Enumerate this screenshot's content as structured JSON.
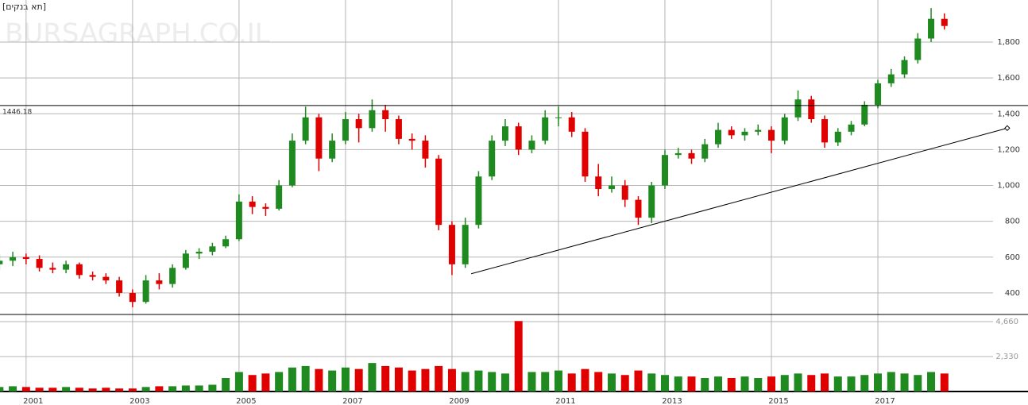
{
  "chart_data": [
    {
      "type": "candlestick",
      "title": "[תא בנקים]",
      "watermark": "BURSAGRAPH.CO.IL",
      "x": [
        2000.5,
        2000.75,
        2001,
        2001.25,
        2001.5,
        2001.75,
        2002,
        2002.25,
        2002.5,
        2002.75,
        2003,
        2003.25,
        2003.5,
        2003.75,
        2004,
        2004.25,
        2004.5,
        2004.75,
        2005,
        2005.25,
        2005.5,
        2005.75,
        2006,
        2006.25,
        2006.5,
        2006.75,
        2007,
        2007.25,
        2007.5,
        2007.75,
        2008,
        2008.25,
        2008.5,
        2008.75,
        2009,
        2009.25,
        2009.5,
        2009.75,
        2010,
        2010.25,
        2010.5,
        2010.75,
        2011,
        2011.25,
        2011.5,
        2011.75,
        2012,
        2012.25,
        2012.5,
        2012.75,
        2013,
        2013.25,
        2013.5,
        2013.75,
        2014,
        2014.25,
        2014.5,
        2014.75,
        2015,
        2015.25,
        2015.5,
        2015.75,
        2016,
        2016.25,
        2016.5,
        2016.75,
        2017,
        2017.25,
        2017.5,
        2017.75,
        2018,
        2018.25
      ],
      "open": [
        560,
        580,
        600,
        590,
        540,
        530,
        560,
        500,
        490,
        470,
        400,
        350,
        470,
        450,
        540,
        620,
        630,
        660,
        700,
        910,
        880,
        870,
        1000,
        1250,
        1380,
        1150,
        1250,
        1370,
        1320,
        1420,
        1370,
        1260,
        1250,
        1150,
        780,
        560,
        780,
        1050,
        1250,
        1330,
        1200,
        1250,
        1380,
        1380,
        1300,
        1050,
        980,
        1000,
        920,
        820,
        1000,
        1170,
        1180,
        1150,
        1230,
        1310,
        1280,
        1300,
        1310,
        1250,
        1380,
        1480,
        1370,
        1240,
        1300,
        1340,
        1450,
        1570,
        1620,
        1700,
        1820,
        1930
      ],
      "high": [
        620,
        630,
        620,
        610,
        570,
        580,
        570,
        520,
        510,
        490,
        420,
        500,
        510,
        560,
        640,
        650,
        680,
        720,
        950,
        940,
        900,
        1030,
        1290,
        1440,
        1400,
        1290,
        1410,
        1400,
        1480,
        1450,
        1390,
        1290,
        1280,
        1170,
        800,
        820,
        1080,
        1280,
        1370,
        1350,
        1280,
        1420,
        1440,
        1410,
        1320,
        1120,
        1050,
        1030,
        940,
        1020,
        1200,
        1210,
        1200,
        1260,
        1350,
        1330,
        1320,
        1340,
        1330,
        1400,
        1530,
        1500,
        1390,
        1320,
        1360,
        1470,
        1590,
        1650,
        1720,
        1850,
        1990,
        1960
      ],
      "low": [
        530,
        550,
        560,
        520,
        510,
        510,
        480,
        470,
        450,
        380,
        320,
        340,
        420,
        430,
        530,
        590,
        610,
        650,
        690,
        840,
        830,
        860,
        990,
        1230,
        1080,
        1130,
        1230,
        1240,
        1300,
        1300,
        1230,
        1200,
        1100,
        750,
        500,
        540,
        760,
        1030,
        1220,
        1170,
        1180,
        1230,
        1330,
        1270,
        1020,
        940,
        960,
        880,
        780,
        790,
        980,
        1150,
        1120,
        1130,
        1210,
        1260,
        1250,
        1280,
        1180,
        1230,
        1360,
        1350,
        1210,
        1220,
        1280,
        1330,
        1430,
        1550,
        1600,
        1680,
        1800,
        1870
      ],
      "close": [
        580,
        600,
        590,
        540,
        530,
        560,
        500,
        490,
        470,
        400,
        350,
        470,
        450,
        540,
        620,
        630,
        660,
        700,
        910,
        880,
        870,
        1000,
        1250,
        1380,
        1150,
        1250,
        1370,
        1320,
        1420,
        1370,
        1260,
        1250,
        1150,
        780,
        560,
        780,
        1050,
        1250,
        1330,
        1200,
        1250,
        1380,
        1380,
        1300,
        1050,
        980,
        1000,
        920,
        820,
        1000,
        1170,
        1180,
        1150,
        1230,
        1310,
        1280,
        1300,
        1310,
        1250,
        1380,
        1480,
        1370,
        1240,
        1300,
        1340,
        1450,
        1570,
        1620,
        1700,
        1820,
        1930,
        1890
      ],
      "up_color": "#1f8a1f",
      "down_color": "#e00000",
      "xlim": [
        2000.51,
        2019.82
      ],
      "xticks": [
        2001,
        2003,
        2005,
        2007,
        2009,
        2011,
        2013,
        2015,
        2017
      ],
      "ylim": [
        280,
        2035
      ],
      "yticks": [
        400,
        600,
        800,
        {
          "value": 1000,
          "label": "1,000"
        },
        {
          "value": 1200,
          "label": "1,200"
        },
        {
          "value": 1400,
          "label": "1,400"
        },
        {
          "value": 1600,
          "label": "1,600"
        },
        {
          "value": 1800,
          "label": "1,800"
        }
      ],
      "level": 1446.18,
      "trendline": [
        [
          2009.36,
          507
        ],
        [
          2019.43,
          1320
        ]
      ],
      "grid": true
    },
    {
      "type": "bar",
      "values": [
        300,
        350,
        300,
        250,
        250,
        300,
        250,
        200,
        250,
        200,
        200,
        300,
        350,
        350,
        400,
        400,
        450,
        900,
        1300,
        1100,
        1200,
        1300,
        1600,
        1700,
        1500,
        1400,
        1600,
        1500,
        1900,
        1700,
        1600,
        1400,
        1500,
        1700,
        1500,
        1300,
        1400,
        1300,
        1200,
        4700,
        1300,
        1300,
        1400,
        1200,
        1500,
        1300,
        1200,
        1100,
        1400,
        1200,
        1100,
        1000,
        1000,
        900,
        1000,
        900,
        1000,
        900,
        1000,
        1100,
        1200,
        1100,
        1200,
        1000,
        1000,
        1100,
        1200,
        1300,
        1200,
        1100,
        1300,
        1200
      ],
      "ylim": [
        0,
        5137
      ],
      "yticks": [
        {
          "value": 2330,
          "label": "2,330"
        },
        {
          "value": 4660,
          "label": "4,660"
        }
      ],
      "grid": true
    }
  ]
}
